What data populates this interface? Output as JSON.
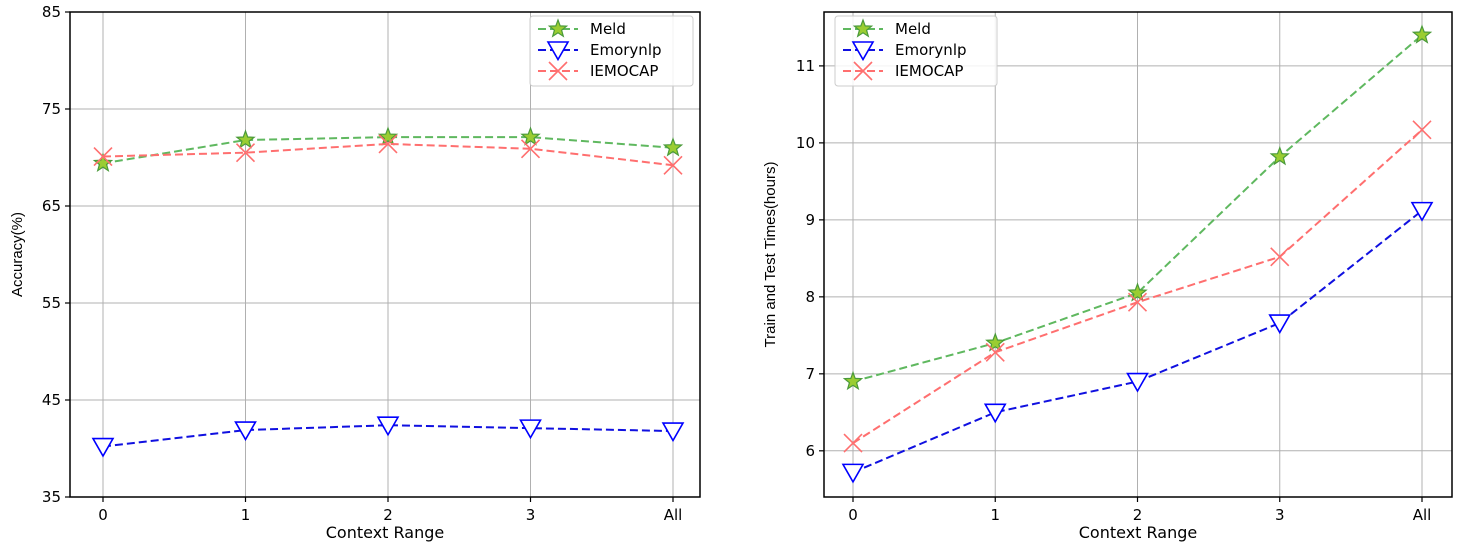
{
  "chart_data": [
    {
      "type": "line",
      "xlabel": "Context Range",
      "ylabel": "Accuracy(%)",
      "categories": [
        "0",
        "1",
        "2",
        "3",
        "All"
      ],
      "ylim": [
        35,
        85
      ],
      "yticks": [
        "35",
        "45",
        "55",
        "65",
        "75",
        "85"
      ],
      "grid": true,
      "legend_position": "top-right",
      "series": [
        {
          "name": "Meld",
          "marker": "star",
          "color": "#2ca02c",
          "values": [
            69.4,
            71.8,
            72.1,
            72.1,
            71.0
          ]
        },
        {
          "name": "Emorynlp",
          "marker": "triangle-down",
          "color": "#0000ff",
          "values": [
            40.2,
            41.9,
            42.4,
            42.1,
            41.8
          ]
        },
        {
          "name": "IEMOCAP",
          "marker": "x",
          "color": "#ff5050",
          "values": [
            70.1,
            70.5,
            71.4,
            70.9,
            69.2
          ]
        }
      ]
    },
    {
      "type": "line",
      "xlabel": "Context Range",
      "ylabel": "Train and Test Times(hours)",
      "categories": [
        "0",
        "1",
        "2",
        "3",
        "All"
      ],
      "ylim": [
        5.4,
        11.7
      ],
      "yticks": [
        "6",
        "7",
        "8",
        "9",
        "10",
        "11"
      ],
      "grid": true,
      "legend_position": "top-left",
      "series": [
        {
          "name": "Meld",
          "marker": "star",
          "color": "#2ca02c",
          "values": [
            6.9,
            7.4,
            8.05,
            9.82,
            11.4
          ]
        },
        {
          "name": "Emorynlp",
          "marker": "triangle-down",
          "color": "#0000ff",
          "values": [
            5.72,
            6.5,
            6.9,
            7.66,
            9.12
          ]
        },
        {
          "name": "IEMOCAP",
          "marker": "x",
          "color": "#ff5050",
          "values": [
            6.1,
            7.28,
            7.93,
            8.52,
            10.17
          ]
        }
      ]
    }
  ]
}
